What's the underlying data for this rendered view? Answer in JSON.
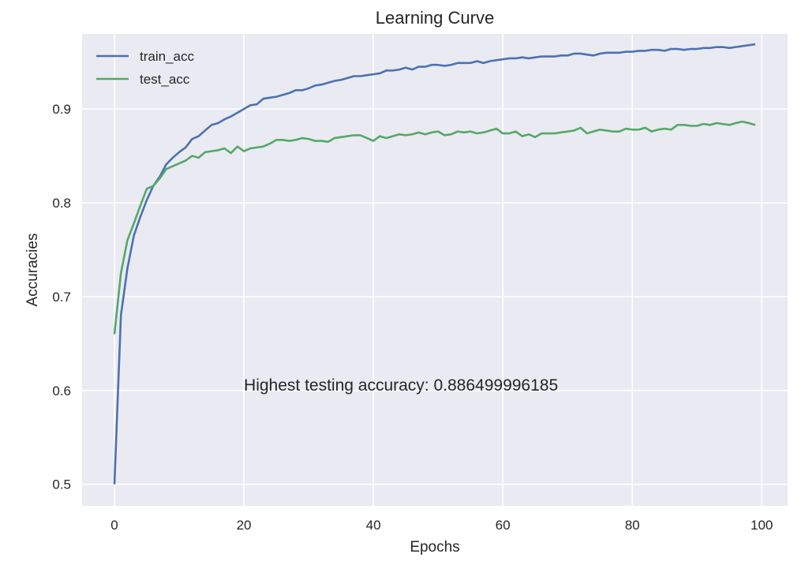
{
  "chart_data": {
    "type": "line",
    "title": "Learning Curve",
    "xlabel": "Epochs",
    "ylabel": "Accuracies",
    "xlim": [
      -5,
      104
    ],
    "ylim": [
      0.477,
      0.98
    ],
    "xticks": [
      0,
      20,
      40,
      60,
      80,
      100
    ],
    "yticks": [
      0.5,
      0.6,
      0.7,
      0.8,
      0.9
    ],
    "grid": true,
    "legend_position": "top-left",
    "annotation": {
      "text": "Highest testing accuracy: 0.886499996185",
      "x": 20,
      "y": 0.6
    },
    "colors": {
      "background": "#EAEAF2",
      "grid": "#FFFFFF",
      "train_acc": "#4C72B0",
      "test_acc": "#55A868"
    },
    "series": [
      {
        "name": "train_acc",
        "x": [
          0,
          1,
          2,
          3,
          4,
          5,
          6,
          7,
          8,
          9,
          10,
          11,
          12,
          13,
          14,
          15,
          16,
          17,
          18,
          19,
          20,
          21,
          22,
          23,
          24,
          25,
          26,
          27,
          28,
          29,
          30,
          31,
          32,
          33,
          34,
          35,
          36,
          37,
          38,
          39,
          40,
          41,
          42,
          43,
          44,
          45,
          46,
          47,
          48,
          49,
          50,
          51,
          52,
          53,
          54,
          55,
          56,
          57,
          58,
          59,
          60,
          61,
          62,
          63,
          64,
          65,
          66,
          67,
          68,
          69,
          70,
          71,
          72,
          73,
          74,
          75,
          76,
          77,
          78,
          79,
          80,
          81,
          82,
          83,
          84,
          85,
          86,
          87,
          88,
          89,
          90,
          91,
          92,
          93,
          94,
          95,
          96,
          97,
          98,
          99
        ],
        "values": [
          0.5,
          0.68,
          0.73,
          0.765,
          0.785,
          0.803,
          0.818,
          0.828,
          0.841,
          0.848,
          0.854,
          0.859,
          0.868,
          0.871,
          0.877,
          0.883,
          0.885,
          0.889,
          0.892,
          0.896,
          0.9,
          0.904,
          0.905,
          0.911,
          0.912,
          0.913,
          0.915,
          0.917,
          0.92,
          0.92,
          0.922,
          0.925,
          0.926,
          0.928,
          0.93,
          0.931,
          0.933,
          0.935,
          0.935,
          0.936,
          0.937,
          0.938,
          0.941,
          0.941,
          0.942,
          0.944,
          0.942,
          0.945,
          0.945,
          0.947,
          0.947,
          0.946,
          0.947,
          0.949,
          0.949,
          0.949,
          0.951,
          0.949,
          0.951,
          0.952,
          0.953,
          0.954,
          0.954,
          0.955,
          0.954,
          0.955,
          0.956,
          0.956,
          0.956,
          0.957,
          0.957,
          0.959,
          0.959,
          0.958,
          0.957,
          0.959,
          0.96,
          0.96,
          0.96,
          0.961,
          0.961,
          0.962,
          0.962,
          0.963,
          0.963,
          0.962,
          0.964,
          0.964,
          0.963,
          0.964,
          0.964,
          0.965,
          0.965,
          0.966,
          0.966,
          0.965,
          0.966,
          0.967,
          0.968,
          0.969
        ]
      },
      {
        "name": "test_acc",
        "x": [
          0,
          1,
          2,
          3,
          4,
          5,
          6,
          7,
          8,
          9,
          10,
          11,
          12,
          13,
          14,
          15,
          16,
          17,
          18,
          19,
          20,
          21,
          22,
          23,
          24,
          25,
          26,
          27,
          28,
          29,
          30,
          31,
          32,
          33,
          34,
          35,
          36,
          37,
          38,
          39,
          40,
          41,
          42,
          43,
          44,
          45,
          46,
          47,
          48,
          49,
          50,
          51,
          52,
          53,
          54,
          55,
          56,
          57,
          58,
          59,
          60,
          61,
          62,
          63,
          64,
          65,
          66,
          67,
          68,
          69,
          70,
          71,
          72,
          73,
          74,
          75,
          76,
          77,
          78,
          79,
          80,
          81,
          82,
          83,
          84,
          85,
          86,
          87,
          88,
          89,
          90,
          91,
          92,
          93,
          94,
          95,
          96,
          97,
          98,
          99
        ],
        "values": [
          0.66,
          0.725,
          0.76,
          0.778,
          0.797,
          0.815,
          0.818,
          0.826,
          0.836,
          0.839,
          0.842,
          0.845,
          0.85,
          0.848,
          0.854,
          0.855,
          0.856,
          0.858,
          0.853,
          0.86,
          0.855,
          0.858,
          0.859,
          0.86,
          0.863,
          0.867,
          0.867,
          0.866,
          0.867,
          0.869,
          0.868,
          0.866,
          0.866,
          0.865,
          0.869,
          0.87,
          0.871,
          0.872,
          0.872,
          0.869,
          0.866,
          0.871,
          0.869,
          0.871,
          0.873,
          0.872,
          0.873,
          0.875,
          0.873,
          0.875,
          0.876,
          0.872,
          0.873,
          0.876,
          0.875,
          0.876,
          0.874,
          0.875,
          0.877,
          0.879,
          0.874,
          0.874,
          0.876,
          0.871,
          0.873,
          0.87,
          0.874,
          0.874,
          0.874,
          0.875,
          0.876,
          0.877,
          0.88,
          0.874,
          0.876,
          0.878,
          0.877,
          0.876,
          0.876,
          0.879,
          0.878,
          0.878,
          0.88,
          0.876,
          0.878,
          0.879,
          0.878,
          0.883,
          0.883,
          0.882,
          0.882,
          0.884,
          0.883,
          0.885,
          0.884,
          0.883,
          0.885,
          0.8865,
          0.885,
          0.883
        ]
      }
    ]
  }
}
